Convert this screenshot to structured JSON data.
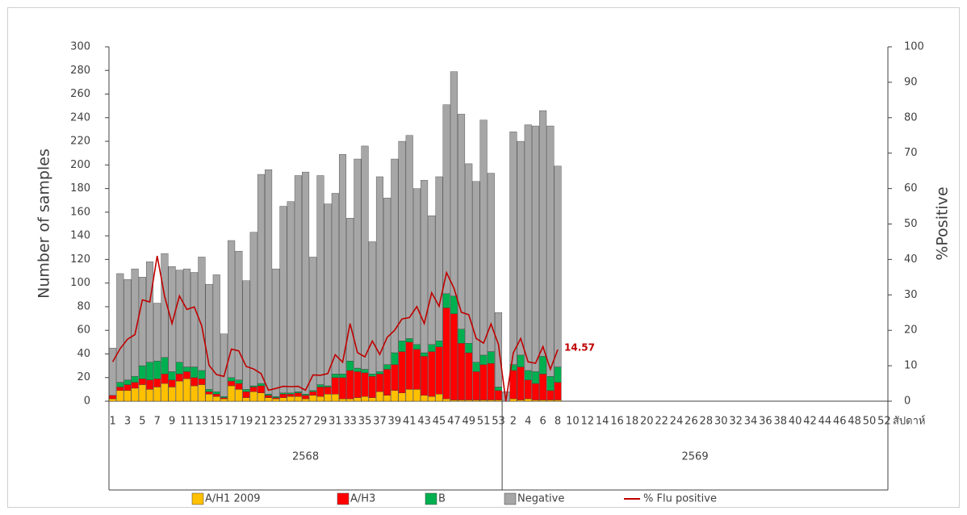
{
  "chart_data": {
    "type": "bar",
    "stacked": true,
    "y_label": "Number of samples",
    "y2_label": "%Positive",
    "x_label": "สัปดาห์",
    "ylim": [
      0,
      300
    ],
    "yticks": [
      0,
      20,
      40,
      60,
      80,
      100,
      120,
      140,
      160,
      180,
      200,
      220,
      240,
      260,
      280,
      300
    ],
    "y2lim": [
      0,
      100
    ],
    "y2ticks": [
      0,
      10,
      20,
      30,
      40,
      50,
      60,
      70,
      80,
      90,
      100
    ],
    "grid": false,
    "legend": "bottom",
    "groups": [
      {
        "name": "2568",
        "categories": [
          "1",
          null,
          "3",
          null,
          "5",
          null,
          "7",
          null,
          "9",
          null,
          "11",
          null,
          "13",
          null,
          "15",
          null,
          "17",
          null,
          "19",
          null,
          "21",
          null,
          "23",
          null,
          "25",
          null,
          "27",
          null,
          "29",
          null,
          "31",
          null,
          "33",
          null,
          "35",
          null,
          "37",
          null,
          "39",
          null,
          "41",
          null,
          "43",
          null,
          "45",
          null,
          "47",
          null,
          "49",
          null,
          "51",
          null,
          "53"
        ]
      },
      {
        "name": "2569",
        "categories": [
          null,
          "2",
          null,
          "4",
          null,
          "6",
          null,
          "8",
          null,
          "10",
          null,
          "12",
          null,
          "14",
          null,
          "16",
          null,
          "18",
          null,
          "20",
          null,
          "22",
          null,
          "24",
          null,
          "26",
          null,
          "28",
          null,
          "30",
          null,
          "32",
          null,
          "34",
          null,
          "36",
          null,
          "38",
          null,
          "40",
          null,
          "42",
          null,
          "44",
          null,
          "46",
          null,
          "48",
          null,
          "50",
          null,
          "52"
        ]
      }
    ],
    "series": [
      {
        "name": "A/H1 2009",
        "type": "bar",
        "color": "#FFC000",
        "values": [
          2,
          9,
          9,
          11,
          14,
          10,
          12,
          15,
          12,
          17,
          19,
          13,
          14,
          6,
          4,
          2,
          13,
          10,
          3,
          8,
          7,
          3,
          2,
          3,
          4,
          4,
          2,
          5,
          4,
          6,
          6,
          2,
          2,
          3,
          4,
          3,
          8,
          5,
          9,
          7,
          10,
          10,
          5,
          4,
          6,
          2,
          1,
          1,
          1,
          1,
          1,
          1,
          1,
          0,
          2,
          1,
          2,
          1,
          1,
          1,
          1,
          null,
          null,
          null,
          null,
          null,
          null,
          null,
          null,
          null,
          null,
          null,
          null,
          null,
          null,
          null,
          null,
          null,
          null,
          null,
          null,
          null,
          null,
          null,
          null,
          null,
          null,
          null,
          null,
          null,
          null,
          null,
          null,
          null,
          null,
          null,
          null,
          null,
          null,
          null,
          null,
          null,
          null,
          null,
          null
        ]
      },
      {
        "name": "A/H3",
        "type": "bar",
        "color": "#FF0000",
        "values": [
          3,
          3,
          5,
          5,
          5,
          8,
          7,
          8,
          6,
          6,
          6,
          7,
          5,
          2,
          2,
          1,
          4,
          5,
          5,
          4,
          6,
          2,
          1,
          3,
          2,
          3,
          3,
          3,
          8,
          6,
          14,
          18,
          24,
          22,
          20,
          18,
          15,
          22,
          22,
          35,
          40,
          34,
          33,
          38,
          40,
          77,
          73,
          48,
          40,
          24,
          30,
          31,
          8,
          0,
          24,
          28,
          16,
          14,
          22,
          8,
          15,
          null,
          null,
          null,
          null,
          null,
          null,
          null,
          null,
          null,
          null,
          null,
          null,
          null,
          null,
          null,
          null,
          null,
          null,
          null,
          null,
          null,
          null,
          null,
          null,
          null,
          null,
          null,
          null,
          null,
          null,
          null,
          null,
          null,
          null,
          null,
          null,
          null,
          null,
          null,
          null,
          null,
          null,
          null,
          null
        ]
      },
      {
        "name": "B",
        "type": "bar",
        "color": "#00B050",
        "values": [
          0,
          4,
          4,
          5,
          11,
          15,
          15,
          14,
          7,
          10,
          4,
          9,
          7,
          2,
          2,
          1,
          3,
          3,
          2,
          1,
          2,
          1,
          1,
          1,
          1,
          1,
          1,
          1,
          2,
          1,
          3,
          3,
          8,
          3,
          3,
          2,
          2,
          4,
          10,
          9,
          3,
          4,
          3,
          6,
          5,
          12,
          15,
          12,
          8,
          8,
          8,
          10,
          3,
          0,
          5,
          10,
          8,
          10,
          15,
          12,
          13,
          null,
          null,
          null,
          null,
          null,
          null,
          null,
          null,
          null,
          null,
          null,
          null,
          null,
          null,
          null,
          null,
          null,
          null,
          null,
          null,
          null,
          null,
          null,
          null,
          null,
          null,
          null,
          null,
          null,
          null,
          null,
          null,
          null,
          null,
          null,
          null,
          null,
          null,
          null,
          null,
          null,
          null,
          null,
          null
        ]
      },
      {
        "name": "Negative",
        "type": "bar",
        "color": "#A6A6A6",
        "values": [
          40,
          92,
          85,
          91,
          75,
          85,
          49,
          88,
          89,
          78,
          83,
          80,
          96,
          89,
          99,
          53,
          116,
          109,
          92,
          130,
          177,
          190,
          108,
          158,
          162,
          183,
          188,
          113,
          177,
          154,
          153,
          186,
          121,
          177,
          189,
          112,
          165,
          141,
          164,
          169,
          172,
          132,
          146,
          109,
          139,
          160,
          190,
          182,
          152,
          153,
          199,
          151,
          63,
          8,
          197,
          181,
          208,
          208,
          208,
          212,
          170,
          null,
          null,
          null,
          null,
          null,
          null,
          null,
          null,
          null,
          null,
          null,
          null,
          null,
          null,
          null,
          null,
          null,
          null,
          null,
          null,
          null,
          null,
          null,
          null,
          null,
          null,
          null,
          null,
          null,
          null,
          null,
          null,
          null,
          null,
          null,
          null,
          null,
          null,
          null,
          null,
          null,
          null,
          null,
          null
        ]
      },
      {
        "name": "% Flu positive",
        "type": "line",
        "axis": "y2",
        "color": "#C00000",
        "values": [
          11.1,
          14.8,
          17.5,
          18.8,
          28.6,
          28.0,
          41.0,
          29.6,
          21.9,
          29.7,
          25.9,
          26.6,
          21.3,
          10.1,
          7.5,
          7.0,
          14.7,
          14.2,
          9.8,
          9.1,
          7.8,
          3.1,
          3.6,
          4.2,
          4.1,
          4.2,
          3.1,
          7.4,
          7.3,
          7.8,
          13.1,
          11.0,
          21.9,
          13.7,
          12.5,
          17.0,
          13.2,
          18.0,
          20.0,
          23.2,
          23.6,
          26.7,
          21.9,
          30.6,
          26.8,
          36.3,
          31.9,
          25.1,
          24.4,
          17.7,
          16.4,
          21.8,
          16.0,
          0,
          13.6,
          17.7,
          11.1,
          10.7,
          15.4,
          9.0,
          14.57,
          null,
          null,
          null,
          null,
          null,
          null,
          null,
          null,
          null,
          null,
          null,
          null,
          null,
          null,
          null,
          null,
          null,
          null,
          null,
          null,
          null,
          null,
          null,
          null,
          null,
          null,
          null,
          null,
          null,
          null,
          null,
          null,
          null,
          null,
          null,
          null,
          null,
          null,
          null,
          null,
          null,
          null,
          null,
          null
        ]
      }
    ]
  }
}
